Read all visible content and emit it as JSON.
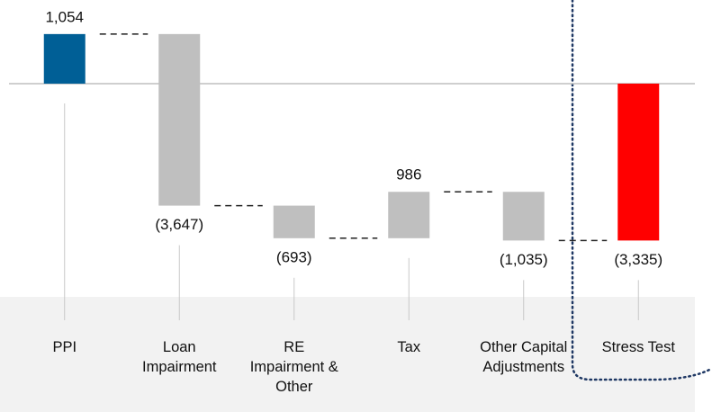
{
  "chart_data": {
    "type": "waterfall",
    "categories": [
      "PPI",
      "Loan Impairment",
      "RE Impairment & Other",
      "Tax",
      "Other Capital Adjustments",
      "Stress Test"
    ],
    "values": [
      1054,
      -3647,
      -693,
      986,
      -1035,
      -3335
    ],
    "value_labels": [
      "1,054",
      "(3,647)",
      "(693)",
      "986",
      "(1,035)",
      "(3,335)"
    ],
    "is_total": [
      false,
      false,
      false,
      false,
      false,
      true
    ],
    "colors": [
      "#005f96",
      "#bfbfbf",
      "#bfbfbf",
      "#bfbfbf",
      "#bfbfbf",
      "#ff0000"
    ],
    "ylim": [
      -3500,
      1300
    ]
  }
}
